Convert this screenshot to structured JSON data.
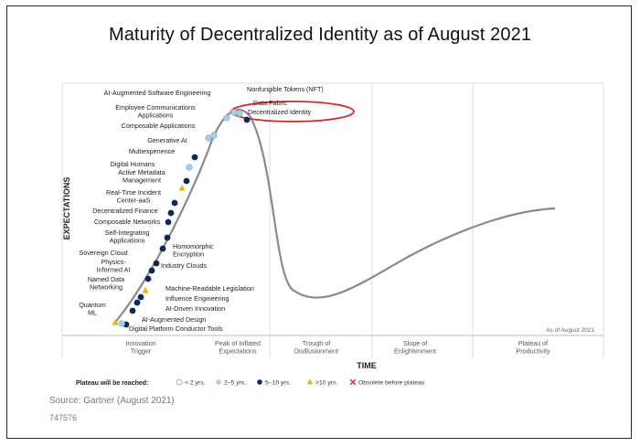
{
  "title": "Maturity of Decentralized Identity as of August 2021",
  "chart_data": {
    "type": "line",
    "title": "Maturity of Decentralized Identity as of August 2021",
    "xlabel": "TIME",
    "ylabel": "EXPECTATIONS",
    "phases": [
      "Innovation Trigger",
      "Peak of Inflated Expectations",
      "Trough of Disillusionment",
      "Slope of Enlightenment",
      "Plateau of Productivity"
    ],
    "date_note": "As of August 2021",
    "grid": true,
    "legend_position": "bottom",
    "highlighted": "Decentralized Identity",
    "legend": {
      "title": "Plateau will be reached:",
      "items": [
        {
          "label": "< 2 yrs.",
          "marker": "circle-open",
          "color": "#ffffff"
        },
        {
          "label": "2–5 yrs.",
          "marker": "circle",
          "color": "#a8cde4"
        },
        {
          "label": "5–10 yrs.",
          "marker": "circle",
          "color": "#0b2a5b"
        },
        {
          "label": ">10 yrs.",
          "marker": "triangle",
          "color": "#f0b400"
        },
        {
          "label": "Obsolete before plateau",
          "marker": "x",
          "color": "#d9262c"
        }
      ]
    },
    "technologies": [
      {
        "name": "Digital Platform Conductor Tools",
        "category": "5-10",
        "phase": "Innovation Trigger"
      },
      {
        "name": "AI-Augmented Design",
        "category": "2-5",
        "phase": "Innovation Trigger"
      },
      {
        "name": "Quantum ML",
        "category": ">10",
        "phase": "Innovation Trigger"
      },
      {
        "name": "AI-Driven Innovation",
        "category": "5-10",
        "phase": "Innovation Trigger"
      },
      {
        "name": "Influence Engineering",
        "category": "5-10",
        "phase": "Innovation Trigger"
      },
      {
        "name": "Machine-Readable Legislation",
        "category": "5-10",
        "phase": "Innovation Trigger"
      },
      {
        "name": "Named Data Networking",
        "category": ">10",
        "phase": "Innovation Trigger"
      },
      {
        "name": "Physics-Informed AI",
        "category": "5-10",
        "phase": "Innovation Trigger"
      },
      {
        "name": "Sovereign Cloud",
        "category": "5-10",
        "phase": "Innovation Trigger"
      },
      {
        "name": "Industry Clouds",
        "category": "5-10",
        "phase": "Innovation Trigger"
      },
      {
        "name": "Homomorphic Encryption",
        "category": "5-10",
        "phase": "Innovation Trigger"
      },
      {
        "name": "Self-Integrating Applications",
        "category": "5-10",
        "phase": "Innovation Trigger"
      },
      {
        "name": "Composable Networks",
        "category": "5-10",
        "phase": "Innovation Trigger"
      },
      {
        "name": "Decentralized Finance",
        "category": "5-10",
        "phase": "Innovation Trigger"
      },
      {
        "name": "Real-Time Incident Center-aaS",
        "category": "5-10",
        "phase": "Innovation Trigger"
      },
      {
        "name": "Active Metadata Management",
        "category": ">10",
        "phase": "Innovation Trigger"
      },
      {
        "name": "Digital Humans",
        "category": "5-10",
        "phase": "Innovation Trigger"
      },
      {
        "name": "Multiexperience",
        "category": "2-5",
        "phase": "Innovation Trigger"
      },
      {
        "name": "Generative AI",
        "category": "5-10",
        "phase": "Innovation Trigger"
      },
      {
        "name": "Composable Applications",
        "category": "2-5",
        "phase": "Innovation Trigger"
      },
      {
        "name": "Employee Communications Applications",
        "category": "2-5",
        "phase": "Peak of Inflated Expectations"
      },
      {
        "name": "AI-Augmented Software Engineering",
        "category": "2-5",
        "phase": "Peak of Inflated Expectations"
      },
      {
        "name": "Nonfungible Tokens (NFT)",
        "category": "2-5",
        "phase": "Peak of Inflated Expectations"
      },
      {
        "name": "Data Fabric",
        "category": "2-5",
        "phase": "Peak of Inflated Expectations"
      },
      {
        "name": "Decentralized Identity",
        "category": "5-10",
        "phase": "Peak of Inflated Expectations"
      }
    ]
  },
  "source": "Source: Gartner (August 2021)",
  "code": "747576"
}
